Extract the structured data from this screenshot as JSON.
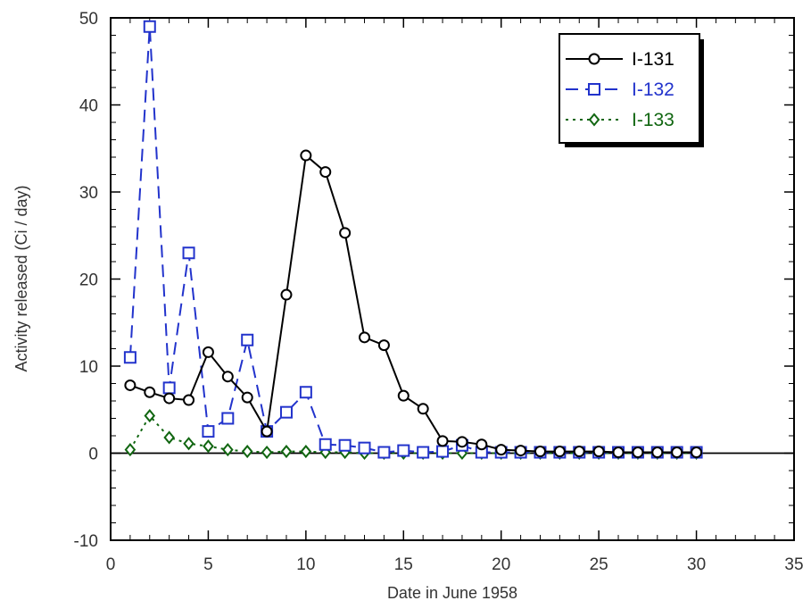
{
  "chart_data": {
    "type": "line",
    "title": "",
    "xlabel": "Date in June 1958",
    "ylabel": "Activity released (Ci / day)",
    "xlim": [
      0,
      35
    ],
    "ylim": [
      -10,
      50
    ],
    "x_ticks": [
      0,
      5,
      10,
      15,
      20,
      25,
      30,
      35
    ],
    "y_ticks": [
      -10,
      0,
      10,
      20,
      30,
      40,
      50
    ],
    "x_tick_labels": [
      "0",
      "5",
      "10",
      "15",
      "20",
      "25",
      "30",
      "35"
    ],
    "y_tick_labels": [
      "-10",
      "0",
      "10",
      "20",
      "30",
      "40",
      "50"
    ],
    "grid": false,
    "zero_line": true,
    "legend_position": "top-right",
    "x": [
      1,
      2,
      3,
      4,
      5,
      6,
      7,
      8,
      9,
      10,
      11,
      12,
      13,
      14,
      15,
      16,
      17,
      18,
      19,
      20,
      21,
      22,
      23,
      24,
      25,
      26,
      27,
      28,
      29,
      30
    ],
    "series": [
      {
        "name": "I-131",
        "color": "#000000",
        "line_style": "solid",
        "marker": "circle-open",
        "values": [
          7.8,
          7.0,
          6.3,
          6.1,
          11.6,
          8.8,
          6.4,
          2.5,
          18.2,
          34.2,
          32.3,
          25.3,
          13.3,
          12.4,
          6.6,
          5.1,
          1.4,
          1.3,
          1.0,
          0.4,
          0.3,
          0.2,
          0.2,
          0.2,
          0.2,
          0.1,
          0.1,
          0.1,
          0.1,
          0.1
        ]
      },
      {
        "name": "I-132",
        "color": "#2233cc",
        "line_style": "dashed",
        "marker": "square-open",
        "values": [
          11.0,
          49.0,
          7.5,
          23.0,
          2.5,
          4.0,
          13.0,
          2.5,
          4.7,
          7.0,
          1.0,
          0.9,
          0.6,
          0.1,
          0.3,
          0.1,
          0.2,
          0.9,
          0.1,
          0.1,
          0.1,
          0.1,
          0.1,
          0.1,
          0.1,
          0.1,
          0.1,
          0.1,
          0.1,
          0.1
        ]
      },
      {
        "name": "I-133",
        "color": "#116611",
        "line_style": "dotted",
        "marker": "diamond-open",
        "values": [
          0.4,
          4.3,
          1.8,
          1.1,
          0.8,
          0.4,
          0.2,
          0.1,
          0.2,
          0.2,
          0.1,
          0.1,
          0.0,
          0.0,
          0.0,
          0.0,
          0.0,
          0.0,
          0.0,
          0.0,
          0.0,
          0.0,
          0.0,
          0.0,
          0.0,
          0.0,
          0.0,
          0.0,
          0.0,
          0.0
        ]
      }
    ]
  }
}
